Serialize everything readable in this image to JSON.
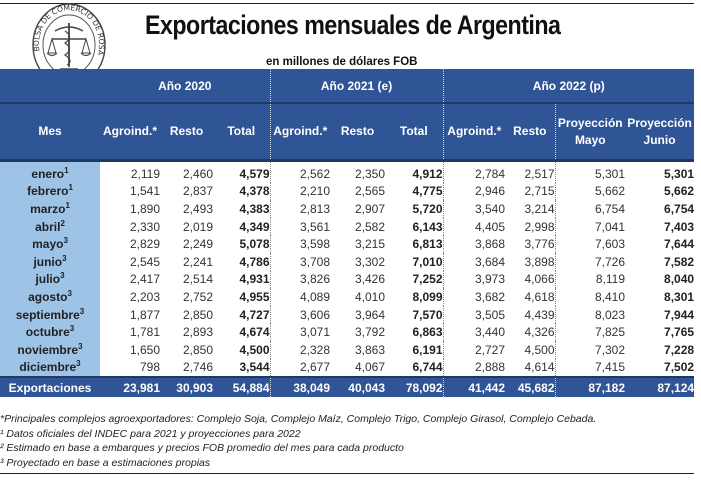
{
  "header": {
    "logo_text": "BOLSA DE COMERCIO DE ROSARIO",
    "title": "Exportaciones mensuales de Argentina",
    "subtitle": "en millones de dólares FOB"
  },
  "colors": {
    "header_blue": "#2F5597",
    "month_column": "#9DC3E6"
  },
  "table": {
    "groups": [
      {
        "label": "Año 2020"
      },
      {
        "label": "Año 2021 (e)"
      },
      {
        "label": "Año 2022 (p)"
      }
    ],
    "columns": {
      "mes": "Mes",
      "agroind": "Agroind.*",
      "resto": "Resto",
      "total": "Total",
      "proy_mayo_1": "Proyección",
      "proy_mayo_2": "Mayo",
      "proy_junio_1": "Proyección",
      "proy_junio_2": "Junio"
    },
    "rows": [
      {
        "mes": "enero",
        "sup": "1",
        "a20": "2,119",
        "r20": "2,460",
        "t20": "4,579",
        "a21": "2,562",
        "r21": "2,350",
        "t21": "4,912",
        "a22": "2,784",
        "r22": "2,517",
        "pm": "5,301",
        "pj": "5,301"
      },
      {
        "mes": "febrero",
        "sup": "1",
        "a20": "1,541",
        "r20": "2,837",
        "t20": "4,378",
        "a21": "2,210",
        "r21": "2,565",
        "t21": "4,775",
        "a22": "2,946",
        "r22": "2,715",
        "pm": "5,662",
        "pj": "5,662"
      },
      {
        "mes": "marzo",
        "sup": "1",
        "a20": "1,890",
        "r20": "2,493",
        "t20": "4,383",
        "a21": "2,813",
        "r21": "2,907",
        "t21": "5,720",
        "a22": "3,540",
        "r22": "3,214",
        "pm": "6,754",
        "pj": "6,754"
      },
      {
        "mes": "abril",
        "sup": "2",
        "a20": "2,330",
        "r20": "2,019",
        "t20": "4,349",
        "a21": "3,561",
        "r21": "2,582",
        "t21": "6,143",
        "a22": "4,405",
        "r22": "2,998",
        "pm": "7,041",
        "pj": "7,403"
      },
      {
        "mes": "mayo",
        "sup": "3",
        "a20": "2,829",
        "r20": "2,249",
        "t20": "5,078",
        "a21": "3,598",
        "r21": "3,215",
        "t21": "6,813",
        "a22": "3,868",
        "r22": "3,776",
        "pm": "7,603",
        "pj": "7,644"
      },
      {
        "mes": "junio",
        "sup": "3",
        "a20": "2,545",
        "r20": "2,241",
        "t20": "4,786",
        "a21": "3,708",
        "r21": "3,302",
        "t21": "7,010",
        "a22": "3,684",
        "r22": "3,898",
        "pm": "7,726",
        "pj": "7,582"
      },
      {
        "mes": "julio",
        "sup": "3",
        "a20": "2,417",
        "r20": "2,514",
        "t20": "4,931",
        "a21": "3,826",
        "r21": "3,426",
        "t21": "7,252",
        "a22": "3,973",
        "r22": "4,066",
        "pm": "8,119",
        "pj": "8,040"
      },
      {
        "mes": "agosto",
        "sup": "3",
        "a20": "2,203",
        "r20": "2,752",
        "t20": "4,955",
        "a21": "4,089",
        "r21": "4,010",
        "t21": "8,099",
        "a22": "3,682",
        "r22": "4,618",
        "pm": "8,410",
        "pj": "8,301"
      },
      {
        "mes": "septiembre",
        "sup": "3",
        "a20": "1,877",
        "r20": "2,850",
        "t20": "4,727",
        "a21": "3,606",
        "r21": "3,964",
        "t21": "7,570",
        "a22": "3,505",
        "r22": "4,439",
        "pm": "8,023",
        "pj": "7,944"
      },
      {
        "mes": "octubre",
        "sup": "3",
        "a20": "1,781",
        "r20": "2,893",
        "t20": "4,674",
        "a21": "3,071",
        "r21": "3,792",
        "t21": "6,863",
        "a22": "3,440",
        "r22": "4,326",
        "pm": "7,825",
        "pj": "7,765"
      },
      {
        "mes": "noviembre",
        "sup": "3",
        "a20": "1,650",
        "r20": "2,850",
        "t20": "4,500",
        "a21": "2,328",
        "r21": "3,863",
        "t21": "6,191",
        "a22": "2,727",
        "r22": "4,500",
        "pm": "7,302",
        "pj": "7,228"
      },
      {
        "mes": "diciembre",
        "sup": "3",
        "a20": "798",
        "r20": "2,746",
        "t20": "3,544",
        "a21": "2,677",
        "r21": "4,067",
        "t21": "6,744",
        "a22": "2,888",
        "r22": "4,614",
        "pm": "7,415",
        "pj": "7,502"
      }
    ],
    "totals": {
      "mes": "Exportaciones",
      "a20": "23,981",
      "r20": "30,903",
      "t20": "54,884",
      "a21": "38,049",
      "r21": "40,043",
      "t21": "78,092",
      "a22": "41,442",
      "r22": "45,682",
      "pm": "87,182",
      "pj": "87,124"
    }
  },
  "footnotes": [
    "*Principales complejos agroexportadores: Complejo Soja, Complejo Maíz, Complejo Trigo, Complejo Girasol, Complejo Cebada.",
    "¹ Datos oficiales del INDEC para 2021 y proyecciones para 2022",
    "² Estimado en base a embarques y precios FOB promedio del mes para cada producto",
    "³ Proyectado en base a estimaciones propias"
  ]
}
